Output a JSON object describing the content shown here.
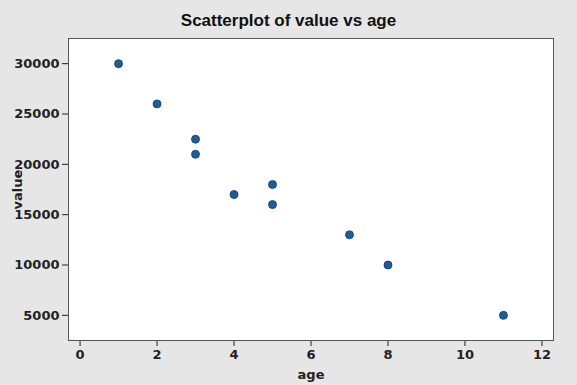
{
  "chart_data": {
    "type": "scatter",
    "title": "Scatterplot of value vs age",
    "x_label": "age",
    "y_label": "value",
    "x": [
      1,
      2,
      3,
      3,
      4,
      5,
      5,
      7,
      8,
      11
    ],
    "values": [
      30000,
      26000,
      22500,
      21000,
      17000,
      18000,
      16000,
      13000,
      10000,
      5000
    ],
    "color": "#1f5c99",
    "marker": "circle",
    "xlim": [
      -0.3,
      12.3
    ],
    "xticks": [
      0,
      2,
      4,
      6,
      8,
      10,
      12
    ],
    "ylim": [
      2500,
      32500
    ],
    "yticks": [
      5000,
      10000,
      15000,
      20000,
      25000,
      30000
    ],
    "grid": false
  }
}
